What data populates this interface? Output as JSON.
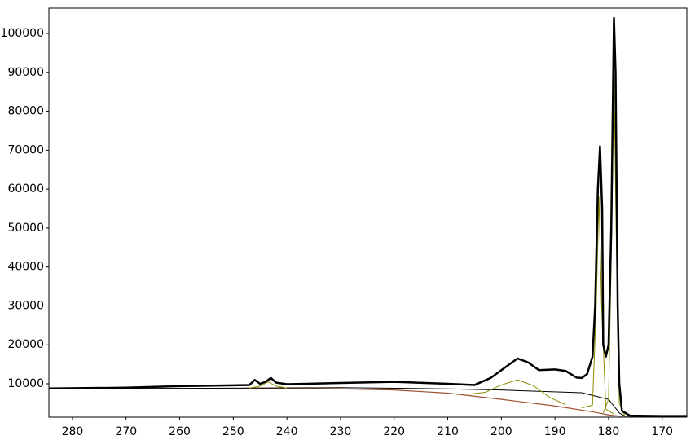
{
  "chart_data": {
    "type": "line",
    "xlim": [
      284.4,
      165.4
    ],
    "ylim": [
      1420,
      106500
    ],
    "xticks": [
      280,
      270,
      260,
      250,
      240,
      230,
      220,
      210,
      200,
      190,
      180,
      170
    ],
    "yticks": [
      10000,
      20000,
      30000,
      40000,
      50000,
      60000,
      70000,
      80000,
      90000,
      100000
    ],
    "series": [
      {
        "color": "#a0522d",
        "width": 1.2,
        "x": [
          284.4,
          250,
          230,
          220,
          210,
          200,
          190,
          183,
          180,
          178,
          165.4
        ],
        "values": [
          8800,
          8800,
          8700,
          8400,
          7600,
          6000,
          4300,
          2800,
          2000,
          1700,
          1700
        ]
      },
      {
        "color": "#000000",
        "width": 1,
        "x": [
          284.4,
          230,
          210,
          200,
          185,
          180,
          178,
          177,
          165.4
        ],
        "values": [
          8700,
          9000,
          8700,
          8400,
          7700,
          6000,
          2500,
          1700,
          1700
        ]
      },
      {
        "color": "#8b8b00",
        "width": 1,
        "x": [
          247,
          245,
          243.5,
          242,
          240
        ],
        "values": [
          8900,
          9400,
          10500,
          9400,
          8900
        ]
      },
      {
        "color": "#8b8b00",
        "width": 1,
        "x": [
          206,
          203,
          200,
          197,
          194,
          191,
          188
        ],
        "values": [
          7300,
          7800,
          9700,
          11000,
          9500,
          6500,
          4600
        ]
      },
      {
        "color": "#8b8b00",
        "width": 1,
        "x": [
          185,
          183,
          182.3,
          181.8,
          181.3,
          180.5,
          179
        ],
        "values": [
          3800,
          4500,
          30000,
          58000,
          30000,
          3500,
          2200
        ]
      },
      {
        "color": "#8b8b00",
        "width": 1,
        "x": [
          181,
          180,
          179.4,
          179,
          178.6,
          178,
          177
        ],
        "values": [
          2500,
          6000,
          50000,
          92000,
          50000,
          5000,
          1800
        ]
      },
      {
        "color": "#000000",
        "width": 2.5,
        "x": [
          284.4,
          270,
          260,
          250,
          247,
          246,
          245,
          244,
          243,
          242,
          240,
          230,
          220,
          210,
          205,
          202,
          199,
          197,
          195,
          193,
          190,
          188,
          186,
          185,
          184,
          183,
          182.5,
          182,
          181.6,
          181.2,
          181,
          180.5,
          180,
          179.5,
          179,
          178.7,
          178.3,
          178,
          177.5,
          176,
          170,
          165.4
        ],
        "values": [
          8800,
          9000,
          9400,
          9600,
          9700,
          11000,
          10000,
          10500,
          11500,
          10300,
          9900,
          10200,
          10500,
          10000,
          9700,
          11500,
          14500,
          16500,
          15500,
          13500,
          13700,
          13300,
          11600,
          11500,
          12500,
          17000,
          30000,
          60000,
          71000,
          55000,
          20000,
          17000,
          20000,
          50000,
          104000,
          90000,
          30000,
          10000,
          3000,
          1800,
          1700,
          1700
        ]
      }
    ]
  }
}
